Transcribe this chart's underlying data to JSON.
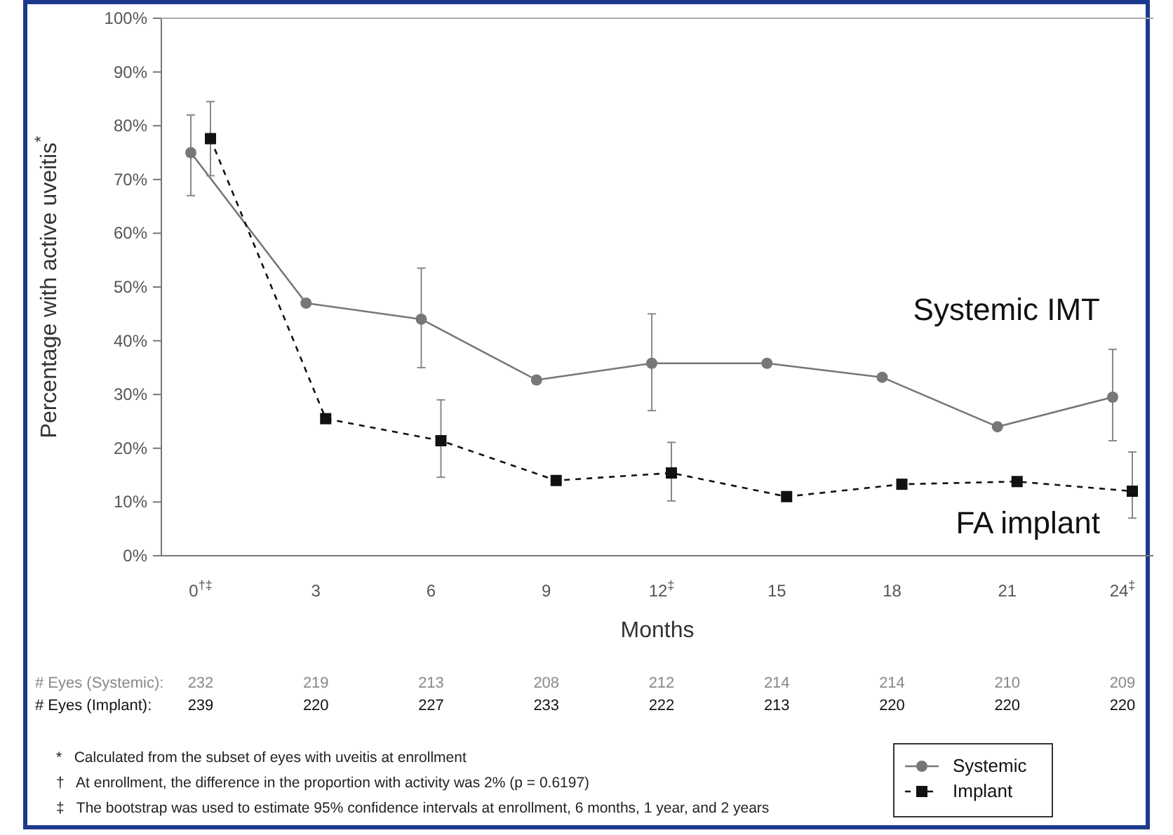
{
  "chart_data": {
    "type": "line",
    "xlabel": "Months",
    "ylabel": "Percentage with active uveitis$^{*}$",
    "categories": [
      "0$^{†‡}$",
      "3",
      "6",
      "9",
      "12$^{‡}$",
      "15",
      "18",
      "21",
      "24$^{‡}$"
    ],
    "ylim": [
      0,
      100
    ],
    "yticks": [
      {
        "value": 0,
        "label": "0%"
      },
      {
        "value": 10,
        "label": "10%"
      },
      {
        "value": 20,
        "label": "20%"
      },
      {
        "value": 30,
        "label": "30%"
      },
      {
        "value": 40,
        "label": "40%"
      },
      {
        "value": 50,
        "label": "50%"
      },
      {
        "value": 60,
        "label": "60%"
      },
      {
        "value": 70,
        "label": "70%"
      },
      {
        "value": 80,
        "label": "80%"
      },
      {
        "value": 90,
        "label": "90%"
      },
      {
        "value": 100,
        "label": "100%"
      }
    ],
    "series": [
      {
        "name": "Systemic",
        "color": "#777777",
        "marker": "circle",
        "line_style": "solid",
        "values": [
          75,
          47,
          44,
          32.7,
          35.8,
          35.8,
          33.2,
          24,
          29.5
        ],
        "errors": [
          [
            67,
            82
          ],
          null,
          [
            35,
            53.5
          ],
          null,
          [
            27,
            45
          ],
          null,
          null,
          null,
          [
            21.4,
            38.4
          ]
        ]
      },
      {
        "name": "Implant",
        "color": "#111111",
        "marker": "square",
        "line_style": "dashed",
        "values": [
          77.6,
          25.5,
          21.4,
          14,
          15.4,
          11,
          13.3,
          13.8,
          12
        ],
        "errors": [
          [
            70.7,
            84.5
          ],
          null,
          [
            14.6,
            29
          ],
          null,
          [
            10.2,
            21.1
          ],
          null,
          null,
          null,
          [
            7,
            19.3
          ]
        ]
      }
    ],
    "legend": "bottom right",
    "grid": false,
    "annotations": [
      "Systemic IMT",
      "FA implant",
      "# Eyes (Systemic):",
      "# Eyes (Implant):",
      "*   Calculated from the subset of eyes with uveitis at enrollment",
      "†   At enrollment, the difference in the proportion with activity was 2% (p = 0.6197)",
      "‡   The bootstrap was used to estimate 95% confidence intervals at enrollment, 6 months, 1 year, and 2 years",
      "232",
      "219",
      "213",
      "208",
      "212",
      "214",
      "214",
      "210",
      "209",
      "239",
      "220",
      "227",
      "233",
      "222",
      "213",
      "220",
      "220",
      "220"
    ]
  }
}
